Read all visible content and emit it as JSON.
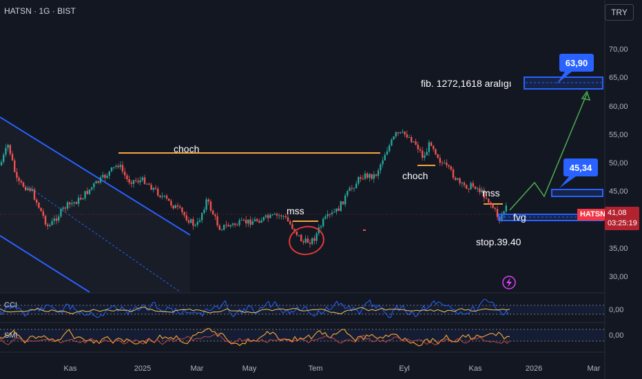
{
  "header": {
    "title": "HATSN · 1G · BIST"
  },
  "currency_button": {
    "label": "TRY"
  },
  "price_axis": {
    "labels": [
      "70,00",
      "65,00",
      "60,00",
      "55,00",
      "50,00",
      "45,00",
      "35,00",
      "30,00"
    ]
  },
  "time_axis": {
    "labels": [
      "Kas",
      "2025",
      "Mar",
      "May",
      "Tem",
      "Eyl",
      "Kas",
      "2026",
      "Mar"
    ]
  },
  "indicators": {
    "cci": {
      "label": "CCI",
      "value": "0,00"
    },
    "smi": {
      "label": "SMI",
      "value": "0,00"
    }
  },
  "last_price": {
    "symbol": "HATSN",
    "price": "41,08",
    "countdown": "03:25:19"
  },
  "annotations": {
    "choch_1": "choch",
    "choch_2": "choch",
    "mss_1": "mss",
    "mss_2": "mss",
    "fvg": "fvg",
    "stop": "stop.39.40",
    "fib": "fib. 1272,1618 aralıgı",
    "target_1": "63,90",
    "target_2": "45,34"
  },
  "colors": {
    "background": "#131722",
    "up": "#26a69a",
    "down": "#ef5350",
    "channel": "#2962ff",
    "structure": "#f7a53c",
    "target": "#2962ff",
    "arrow": "#4caf50",
    "cci_line": "#2962ff",
    "signal_line": "#f7c948",
    "smi_line": "#f0a030",
    "price_tag": "#f23645"
  }
}
